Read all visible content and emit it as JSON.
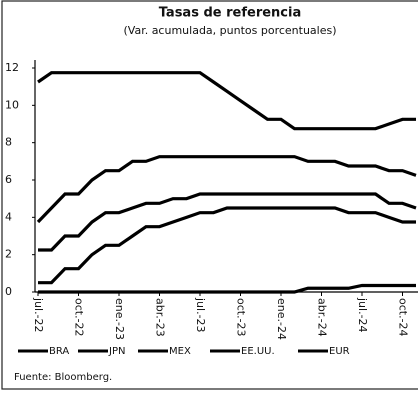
{
  "chart_data": {
    "type": "line",
    "title": "Tasas de referencia",
    "subtitle": "(Var. acumulada, puntos porcentuales)",
    "source": "Fuente: Bloomberg.",
    "categories": [
      "jul.-22",
      null,
      null,
      "oct.-22",
      null,
      null,
      "ene.-23",
      null,
      null,
      "abr.-23",
      null,
      null,
      "jul.-23",
      null,
      null,
      "oct.-23",
      null,
      null,
      "ene.-24",
      null,
      null,
      "abr.-24",
      null,
      null,
      "jul.-24",
      null,
      null,
      "oct.-24",
      null
    ],
    "series": [
      {
        "name": "BRA",
        "color": "#000000",
        "values": [
          11.25,
          11.75,
          11.75,
          11.75,
          11.75,
          11.75,
          11.75,
          11.75,
          11.75,
          11.75,
          11.75,
          11.75,
          11.75,
          11.25,
          10.75,
          10.25,
          9.75,
          9.25,
          9.25,
          8.75,
          8.75,
          8.75,
          8.75,
          8.75,
          8.75,
          8.75,
          9.0,
          9.25,
          9.25
        ]
      },
      {
        "name": "JPN",
        "color": "#000000",
        "values": [
          0,
          0,
          0,
          0,
          0,
          0,
          0,
          0,
          0,
          0,
          0,
          0,
          0,
          0,
          0,
          0,
          0,
          0,
          0,
          0,
          0.2,
          0.2,
          0.2,
          0.2,
          0.35,
          0.35,
          0.35,
          0.35,
          0.35
        ]
      },
      {
        "name": "MEX",
        "color": "#000000",
        "values": [
          3.75,
          4.5,
          5.25,
          5.25,
          6,
          6.5,
          6.5,
          7,
          7,
          7.25,
          7.25,
          7.25,
          7.25,
          7.25,
          7.25,
          7.25,
          7.25,
          7.25,
          7.25,
          7.25,
          7,
          7,
          7,
          6.75,
          6.75,
          6.75,
          6.5,
          6.5,
          6.25
        ]
      },
      {
        "name": "EE.UU.",
        "color": "#000000",
        "values": [
          2.25,
          2.25,
          3,
          3,
          3.75,
          4.25,
          4.25,
          4.5,
          4.75,
          4.75,
          5,
          5,
          5.25,
          5.25,
          5.25,
          5.25,
          5.25,
          5.25,
          5.25,
          5.25,
          5.25,
          5.25,
          5.25,
          5.25,
          5.25,
          5.25,
          4.75,
          4.75,
          4.5
        ]
      },
      {
        "name": "EUR",
        "color": "#000000",
        "values": [
          0.5,
          0.5,
          1.25,
          1.25,
          2,
          2.5,
          2.5,
          3,
          3.5,
          3.5,
          3.75,
          4,
          4.25,
          4.25,
          4.5,
          4.5,
          4.5,
          4.5,
          4.5,
          4.5,
          4.5,
          4.5,
          4.5,
          4.25,
          4.25,
          4.25,
          4,
          3.75,
          3.75
        ]
      }
    ],
    "ylim": [
      0,
      12
    ],
    "yticks": [
      0,
      2,
      4,
      6,
      8,
      10,
      12
    ],
    "grid": false
  }
}
